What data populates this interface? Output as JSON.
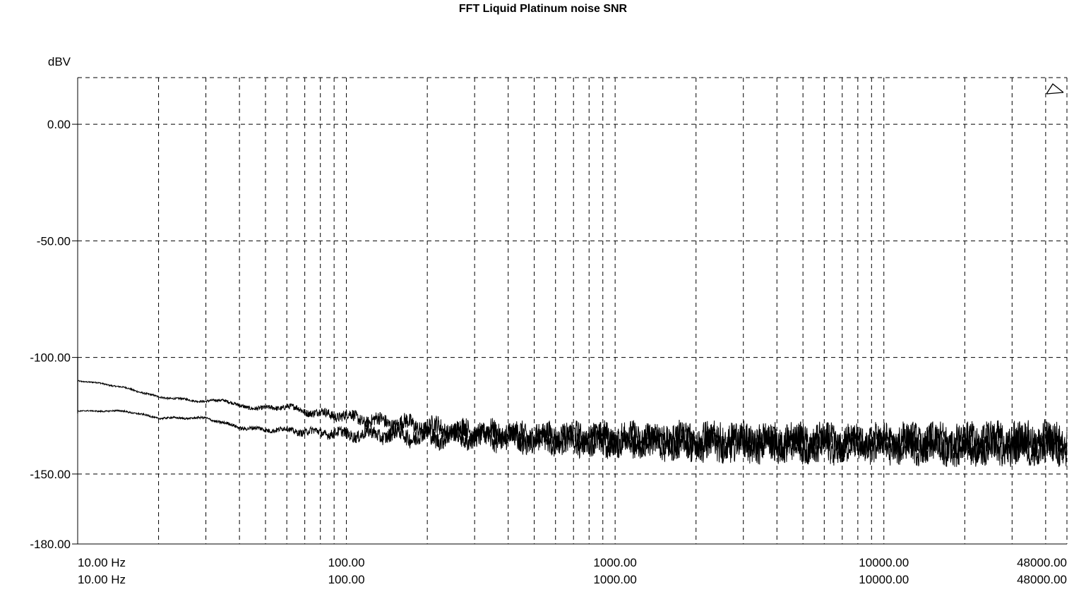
{
  "chart_data": {
    "type": "line",
    "title": "FFT Liquid Platinum noise SNR",
    "ylabel": "dBV",
    "x_scale": "log",
    "xlim": [
      10,
      48000
    ],
    "ylim": [
      -180,
      20
    ],
    "grid": true,
    "y_ticks": [
      {
        "value": 0,
        "label": "0.00"
      },
      {
        "value": -50,
        "label": "-50.00"
      },
      {
        "value": -100,
        "label": "-100.00"
      },
      {
        "value": -150,
        "label": "-150.00"
      },
      {
        "value": -180,
        "label": "-180.00"
      }
    ],
    "x_ticks_row1": [
      {
        "value": 10,
        "label": "10.00 Hz"
      },
      {
        "value": 100,
        "label": "100.00"
      },
      {
        "value": 1000,
        "label": "1000.00"
      },
      {
        "value": 10000,
        "label": "10000.00"
      },
      {
        "value": 48000,
        "label": "48000.00"
      }
    ],
    "x_ticks_row2": [
      {
        "value": 10,
        "label": "10.00 Hz"
      },
      {
        "value": 100,
        "label": "100.00"
      },
      {
        "value": 1000,
        "label": "1000.00"
      },
      {
        "value": 10000,
        "label": "10000.00"
      },
      {
        "value": 48000,
        "label": "48000.00"
      }
    ],
    "series": [
      {
        "color": "#000000",
        "points": [
          [
            10,
            -110
          ],
          [
            12,
            -111
          ],
          [
            15,
            -113
          ],
          [
            20,
            -117
          ],
          [
            25,
            -118
          ],
          [
            30,
            -119
          ],
          [
            35,
            -118
          ],
          [
            40,
            -121
          ],
          [
            50,
            -122
          ],
          [
            60,
            -121
          ],
          [
            70,
            -123
          ],
          [
            80,
            -124
          ],
          [
            100,
            -125
          ],
          [
            120,
            -127
          ],
          [
            150,
            -128
          ],
          [
            200,
            -130
          ],
          [
            300,
            -132
          ],
          [
            500,
            -134
          ],
          [
            1000,
            -135
          ],
          [
            2000,
            -136
          ],
          [
            5000,
            -137
          ],
          [
            10000,
            -137
          ],
          [
            20000,
            -137
          ],
          [
            48000,
            -137
          ]
        ],
        "noise_db": [
          [
            10,
            0.3
          ],
          [
            30,
            0.6
          ],
          [
            60,
            1.5
          ],
          [
            100,
            3
          ],
          [
            200,
            5
          ],
          [
            500,
            6
          ],
          [
            1000,
            7
          ],
          [
            2000,
            8
          ],
          [
            10000,
            8
          ],
          [
            48000,
            9
          ]
        ]
      },
      {
        "color": "#000000",
        "points": [
          [
            10,
            -123
          ],
          [
            12,
            -123
          ],
          [
            15,
            -123
          ],
          [
            20,
            -126
          ],
          [
            25,
            -126
          ],
          [
            30,
            -126
          ],
          [
            40,
            -130
          ],
          [
            50,
            -131
          ],
          [
            60,
            -131
          ],
          [
            70,
            -132
          ],
          [
            80,
            -132
          ],
          [
            100,
            -133
          ],
          [
            120,
            -133
          ],
          [
            150,
            -133
          ],
          [
            200,
            -134
          ],
          [
            300,
            -134
          ],
          [
            500,
            -135
          ],
          [
            1000,
            -136
          ],
          [
            2000,
            -136
          ],
          [
            5000,
            -137
          ],
          [
            10000,
            -137
          ],
          [
            20000,
            -137
          ],
          [
            48000,
            -137
          ]
        ],
        "noise_db": [
          [
            10,
            0.3
          ],
          [
            30,
            0.6
          ],
          [
            60,
            1.5
          ],
          [
            100,
            3
          ],
          [
            200,
            5
          ],
          [
            500,
            6
          ],
          [
            1000,
            7
          ],
          [
            2000,
            8
          ],
          [
            10000,
            8
          ],
          [
            48000,
            9
          ]
        ]
      }
    ],
    "marker": {
      "type": "triangle",
      "position": "top-right"
    }
  }
}
